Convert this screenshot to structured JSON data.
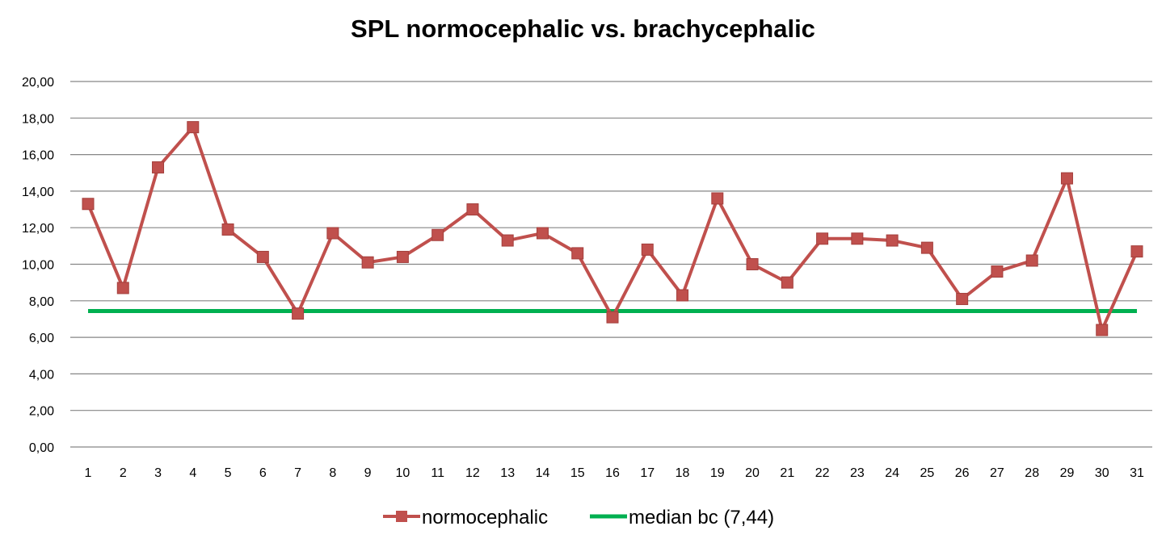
{
  "chart_data": {
    "type": "line",
    "title": "SPL normocephalic vs. brachycephalic",
    "xlabel": "",
    "ylabel": "",
    "categories": [
      "1",
      "2",
      "3",
      "4",
      "5",
      "6",
      "7",
      "8",
      "9",
      "10",
      "11",
      "12",
      "13",
      "14",
      "15",
      "16",
      "17",
      "18",
      "19",
      "20",
      "21",
      "22",
      "23",
      "24",
      "25",
      "26",
      "27",
      "28",
      "29",
      "30",
      "31"
    ],
    "ylim": [
      0,
      20
    ],
    "yticks": [
      "0,00",
      "2,00",
      "4,00",
      "6,00",
      "8,00",
      "10,00",
      "12,00",
      "14,00",
      "16,00",
      "18,00",
      "20,00"
    ],
    "grid": true,
    "legend_position": "bottom",
    "series": [
      {
        "name": "normocephalic",
        "color": "#c0504d",
        "marker": "square",
        "values": [
          13.3,
          8.7,
          15.3,
          17.5,
          11.9,
          10.4,
          7.3,
          11.7,
          10.1,
          10.4,
          11.6,
          13.0,
          11.3,
          11.7,
          10.6,
          7.1,
          10.8,
          8.3,
          13.6,
          10.0,
          9.0,
          11.4,
          11.4,
          11.3,
          10.9,
          8.1,
          9.6,
          10.2,
          14.7,
          6.4,
          10.7
        ]
      },
      {
        "name": "median bc (7,44)",
        "color": "#00b050",
        "marker": "none",
        "values": [
          7.44,
          7.44,
          7.44,
          7.44,
          7.44,
          7.44,
          7.44,
          7.44,
          7.44,
          7.44,
          7.44,
          7.44,
          7.44,
          7.44,
          7.44,
          7.44,
          7.44,
          7.44,
          7.44,
          7.44,
          7.44,
          7.44,
          7.44,
          7.44,
          7.44,
          7.44,
          7.44,
          7.44,
          7.44,
          7.44,
          7.44
        ]
      }
    ]
  }
}
